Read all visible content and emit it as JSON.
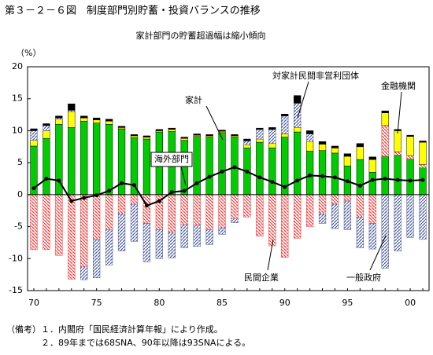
{
  "chart_data": {
    "type": "bar",
    "title": "第３－２－６図　制度部門別貯蓄・投資バランスの推移",
    "subtitle": "家計部門の貯蓄超過幅は縮小傾向",
    "y_unit": "（%）",
    "categories": [
      "70",
      null,
      null,
      null,
      null,
      "75",
      null,
      null,
      null,
      null,
      "80",
      null,
      null,
      null,
      null,
      "85",
      null,
      null,
      null,
      null,
      "90",
      null,
      null,
      null,
      null,
      "95",
      null,
      null,
      null,
      null,
      "00",
      null
    ],
    "ylim": [
      -15,
      20
    ],
    "yticks": [
      -15,
      -10,
      -5,
      0,
      5,
      10,
      15,
      20
    ],
    "series": [
      {
        "name": "家計",
        "color": "#00cc00",
        "values": [
          7.6,
          8.8,
          11.0,
          10.5,
          11.5,
          11.2,
          11.0,
          10.3,
          8.9,
          8.7,
          9.8,
          9.9,
          8.5,
          9.1,
          9.0,
          9.7,
          9.0,
          7.3,
          8.2,
          7.3,
          9.0,
          9.8,
          6.8,
          6.9,
          6.5,
          4.5,
          5.5,
          3.5,
          6.0,
          6.2,
          5.6,
          4.2
        ]
      },
      {
        "name": "金融機関",
        "color": "#ffff00",
        "values": [
          0.9,
          1.2,
          0.8,
          2.5,
          0.5,
          0.5,
          0.5,
          0.2,
          0.3,
          0.3,
          0.2,
          0.3,
          0.3,
          0.2,
          0.2,
          0.2,
          0.2,
          0.5,
          0.5,
          0.7,
          0.5,
          0.7,
          1.5,
          1.0,
          0.8,
          1.5,
          2.0,
          2.0,
          2.0,
          3.3,
          3.0,
          3.5
        ]
      },
      {
        "name": "対家計民間非営利団体",
        "color": "#000000",
        "values": [
          0.3,
          0.3,
          0.3,
          1.0,
          0.3,
          0.3,
          0.3,
          0.2,
          0.2,
          0.2,
          0.2,
          0.2,
          0.2,
          0.2,
          0.2,
          0.2,
          0.2,
          0.3,
          0.2,
          0.3,
          0.3,
          1.2,
          0.5,
          0.4,
          0.3,
          0.4,
          0.5,
          0.4,
          0.3,
          0.2,
          0.2,
          0.2
        ]
      },
      {
        "name": "一般政府",
        "color": "#4a5a9a",
        "hatch": true,
        "values": [
          1.5,
          0.8,
          0.2,
          0.2,
          -2.0,
          -6.0,
          -5.5,
          -5.8,
          -5.8,
          -6.0,
          -4.5,
          -4.0,
          -3.6,
          -3.3,
          -2.3,
          -1.0,
          -0.6,
          0.6,
          1.5,
          2.2,
          2.8,
          3.8,
          1.2,
          -1.5,
          -3.8,
          -4.5,
          -4.8,
          -4.0,
          -11.5,
          -8.8,
          -6.7,
          -7.0
        ]
      },
      {
        "name": "民間企業",
        "color": "#ff3030",
        "hatch": true,
        "values": [
          -8.6,
          -8.6,
          -9.5,
          -13.2,
          -11.3,
          -7.0,
          -5.5,
          -3.0,
          -1.5,
          -4.5,
          -5.5,
          -5.9,
          -4.7,
          -4.8,
          -5.5,
          -5.2,
          -3.8,
          -3.5,
          -6.5,
          -8.0,
          -9.8,
          -6.8,
          -5.0,
          -3.0,
          -1.5,
          -1.0,
          -3.5,
          -4.5,
          4.8,
          0.5,
          0.5,
          0.5
        ]
      },
      {
        "name": "海外部門",
        "color": "#000000",
        "type": "line",
        "values": [
          1.0,
          2.5,
          2.2,
          -1.0,
          -0.5,
          -0.1,
          0.6,
          1.8,
          1.5,
          -1.7,
          -1.0,
          0.4,
          0.6,
          1.8,
          2.8,
          3.6,
          4.3,
          3.6,
          2.7,
          2.0,
          1.2,
          2.2,
          3.0,
          2.9,
          2.7,
          2.1,
          1.4,
          2.3,
          2.5,
          2.3,
          2.2,
          2.3
        ]
      }
    ],
    "notes": [
      "（備考）１．内閣府「国民経済計算年報」により作成。",
      "２．89年までは68SNA、90年以降は93SNAによる。"
    ]
  }
}
